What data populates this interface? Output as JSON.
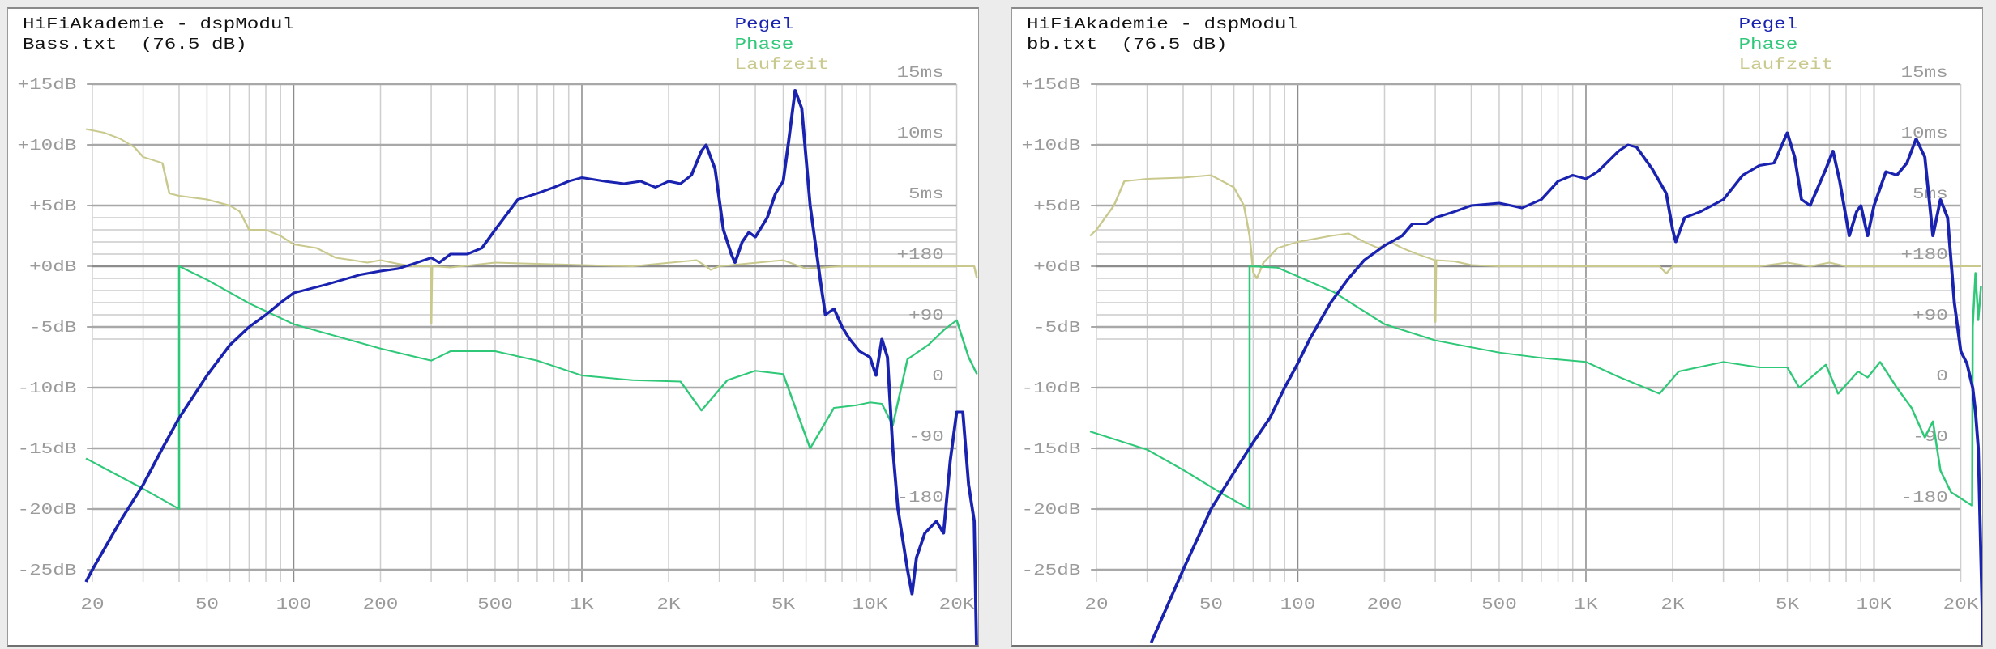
{
  "colors": {
    "pegel": "#1a22b0",
    "phase": "#2fc878",
    "laufzeit": "#c9c98e",
    "grid_major": "#a8a8a8",
    "grid_minor": "#d8d8d8",
    "axis_text": "#9a9a9a"
  },
  "chart_data": [
    {
      "type": "line",
      "title": "HiFiAkademie - dspModul",
      "subtitle": "Bass.txt  (76.5 dB)",
      "legend": [
        "Pegel",
        "Phase",
        "Laufzeit"
      ],
      "legend_placement": "top-right",
      "x_scale": "log",
      "xlim": [
        19,
        24000
      ],
      "ylim_db": [
        -26,
        15
      ],
      "grid": true,
      "x_ticks": [
        20,
        50,
        100,
        200,
        500,
        1000,
        2000,
        5000,
        10000,
        20000
      ],
      "x_tick_labels": [
        "20",
        "50",
        "100",
        "200",
        "500",
        "1K",
        "2K",
        "5K",
        "10K",
        "20K"
      ],
      "y_ticks": [
        15,
        10,
        5,
        0,
        -5,
        -10,
        -15,
        -20,
        -25
      ],
      "y_tick_labels": [
        "+15dB",
        "+10dB",
        "+5dB",
        "+0dB",
        "-5dB",
        "-10dB",
        "-15dB",
        "-20dB",
        "-25dB"
      ],
      "laufzeit_ticks": [
        15,
        10,
        5
      ],
      "laufzeit_tick_labels": [
        "15ms",
        "10ms",
        "5ms"
      ],
      "phase_ticks": [
        180,
        90,
        0,
        -90,
        -180
      ],
      "phase_tick_labels": [
        "+180",
        "+90",
        "0",
        "-90",
        "-180"
      ],
      "series": [
        {
          "name": "Pegel",
          "unit": "dB",
          "x": [
            19,
            20,
            25,
            30,
            35,
            40,
            50,
            60,
            70,
            80,
            90,
            100,
            130,
            170,
            200,
            230,
            260,
            300,
            320,
            350,
            400,
            450,
            500,
            600,
            700,
            800,
            900,
            1000,
            1200,
            1400,
            1600,
            1800,
            2000,
            2200,
            2400,
            2600,
            2700,
            2900,
            3100,
            3300,
            3400,
            3600,
            3800,
            4000,
            4400,
            4700,
            5000,
            5200,
            5500,
            5800,
            6200,
            6800,
            7000,
            7500,
            8000,
            8500,
            9200,
            10000,
            10500,
            11000,
            11500,
            12000,
            12500,
            13500,
            14000,
            14500,
            15500,
            17000,
            18000,
            19000,
            20000,
            21000,
            22000,
            23000,
            23500
          ],
          "y": [
            -26,
            -25,
            -21,
            -18,
            -15,
            -12.5,
            -9,
            -6.5,
            -5,
            -4,
            -3,
            -2.2,
            -1.5,
            -0.7,
            -0.4,
            -0.2,
            0.2,
            0.7,
            0.3,
            1,
            1,
            1.5,
            3,
            5.5,
            6,
            6.5,
            7,
            7.3,
            7,
            6.8,
            7,
            6.5,
            7,
            6.8,
            7.5,
            9.5,
            10,
            8,
            3,
            1,
            0.3,
            2,
            2.8,
            2.4,
            4,
            6,
            7,
            10,
            14.5,
            13,
            5,
            -2,
            -4,
            -3.5,
            -5,
            -6,
            -7,
            -7.5,
            -9,
            -6,
            -7.5,
            -15,
            -20,
            -25,
            -27,
            -24,
            -22,
            -21,
            -22,
            -16,
            -12,
            -12,
            -18,
            -21,
            -33
          ]
        },
        {
          "name": "Phase",
          "unit": "deg",
          "x": [
            19,
            20,
            30,
            40,
            40.01,
            50,
            70,
            100,
            200,
            300,
            350,
            500,
            700,
            1000,
            1500,
            2200,
            2600,
            3200,
            4000,
            5000,
            6200,
            7500,
            9000,
            10000,
            11000,
            12000,
            13500,
            16000,
            18000,
            20000,
            22000,
            23500
          ],
          "y": [
            -105,
            -110,
            -150,
            -180,
            180,
            160,
            125,
            94,
            58,
            40,
            54,
            54,
            40,
            18,
            11,
            9,
            -34,
            11,
            25,
            20,
            -90,
            -30,
            -26,
            -22,
            -24,
            -56,
            42,
            64,
            85,
            100,
            45,
            20
          ]
        },
        {
          "name": "Laufzeit",
          "unit": "ms",
          "x": [
            19,
            22,
            25,
            28,
            30,
            35,
            37,
            40,
            50,
            60,
            65,
            70,
            80,
            90,
            100,
            120,
            140,
            160,
            180,
            200,
            230,
            260,
            299,
            300,
            302,
            350,
            500,
            700,
            1000,
            1500,
            2500,
            2700,
            2800,
            3000,
            5000,
            6000,
            8000,
            12000,
            23000,
            23500
          ],
          "y": [
            11.3,
            11,
            10.5,
            9.8,
            9,
            8.5,
            6,
            5.8,
            5.5,
            5,
            4.5,
            3,
            3,
            2.5,
            1.8,
            1.5,
            0.7,
            0.5,
            0.3,
            0.5,
            0.2,
            0,
            0,
            -4.7,
            0,
            -0.1,
            0.3,
            0.2,
            0.1,
            0,
            0.5,
            0,
            -0.3,
            0,
            0.5,
            -0.2,
            0,
            0,
            0,
            -1
          ]
        }
      ]
    },
    {
      "type": "line",
      "title": "HiFiAkademie - dspModul",
      "subtitle": "bb.txt  (76.5 dB)",
      "legend": [
        "Pegel",
        "Phase",
        "Laufzeit"
      ],
      "legend_placement": "top-right",
      "x_scale": "log",
      "xlim": [
        19,
        24000
      ],
      "ylim_db": [
        -26,
        15
      ],
      "grid": true,
      "x_ticks": [
        20,
        50,
        100,
        200,
        500,
        1000,
        2000,
        5000,
        10000,
        20000
      ],
      "x_tick_labels": [
        "20",
        "50",
        "100",
        "200",
        "500",
        "1K",
        "2K",
        "5K",
        "10K",
        "20K"
      ],
      "y_ticks": [
        15,
        10,
        5,
        0,
        -5,
        -10,
        -15,
        -20,
        -25
      ],
      "y_tick_labels": [
        "+15dB",
        "+10dB",
        "+5dB",
        "+0dB",
        "-5dB",
        "-10dB",
        "-15dB",
        "-20dB",
        "-25dB"
      ],
      "laufzeit_ticks": [
        15,
        10,
        5
      ],
      "laufzeit_tick_labels": [
        "15ms",
        "10ms",
        "5ms"
      ],
      "phase_ticks": [
        180,
        90,
        0,
        -90,
        -180
      ],
      "phase_tick_labels": [
        "+180",
        "+90",
        "0",
        "-90",
        "-180"
      ],
      "series": [
        {
          "name": "Pegel",
          "unit": "dB",
          "x": [
            31,
            40,
            50,
            60,
            70,
            80,
            90,
            100,
            110,
            130,
            150,
            170,
            200,
            230,
            250,
            280,
            300,
            350,
            400,
            500,
            550,
            600,
            700,
            800,
            900,
            1000,
            1100,
            1300,
            1400,
            1500,
            1700,
            1900,
            2000,
            2050,
            2200,
            2500,
            3000,
            3500,
            4000,
            4500,
            5000,
            5300,
            5600,
            6000,
            6800,
            7200,
            7600,
            8200,
            8700,
            9000,
            9500,
            10000,
            11000,
            12000,
            13000,
            14000,
            15000,
            16000,
            17000,
            18000,
            19000,
            20000,
            21000,
            22000,
            22500,
            23000,
            24000
          ],
          "y": [
            -31,
            -25,
            -20,
            -17,
            -14.5,
            -12.5,
            -10,
            -8,
            -6,
            -3,
            -1,
            0.5,
            1.7,
            2.5,
            3.5,
            3.5,
            4,
            4.5,
            5,
            5.2,
            5,
            4.8,
            5.5,
            7,
            7.5,
            7.2,
            7.8,
            9.5,
            10,
            9.8,
            8,
            6,
            3,
            2,
            4,
            4.5,
            5.5,
            7.5,
            8.3,
            8.5,
            11,
            9,
            5.5,
            5,
            8,
            9.5,
            7,
            2.5,
            4.5,
            5,
            2.5,
            5,
            7.8,
            7.5,
            8.5,
            10.5,
            9,
            2.5,
            5.5,
            4,
            -3,
            -7,
            -8,
            -10,
            -12,
            -15,
            -33
          ]
        },
        {
          "name": "Phase",
          "unit": "deg",
          "x": [
            19,
            20,
            30,
            40,
            55,
            68,
            68.01,
            85,
            100,
            133,
            200,
            300,
            500,
            700,
            1000,
            1300,
            1800,
            2100,
            3000,
            4000,
            5000,
            5500,
            6800,
            7500,
            8800,
            9500,
            10500,
            12000,
            13500,
            15000,
            16000,
            17000,
            18500,
            21900,
            22000,
            22500,
            23000,
            23500
          ],
          "y": [
            -65,
            -68,
            -92,
            -122,
            -158,
            -180,
            180,
            178,
            165,
            142,
            94,
            70,
            52,
            44,
            38,
            16,
            -9,
            24,
            38,
            30,
            30,
            0,
            34,
            -9,
            24,
            15,
            38,
            0,
            -30,
            -74,
            -50,
            -123,
            -155,
            -175,
            90,
            170,
            100,
            150
          ]
        },
        {
          "name": "Laufzeit",
          "unit": "ms",
          "x": [
            19,
            20,
            23,
            25,
            30,
            40,
            50,
            60,
            65,
            68,
            70,
            72,
            76,
            85,
            100,
            130,
            150,
            170,
            190,
            210,
            230,
            260,
            299,
            300,
            302,
            350,
            400,
            500,
            1800,
            1900,
            2000,
            4000,
            5000,
            6000,
            7000,
            8000,
            23500
          ],
          "y": [
            2.5,
            3,
            5,
            7,
            7.2,
            7.3,
            7.5,
            6.5,
            5,
            2.5,
            -0.5,
            -1,
            0.3,
            1.5,
            2,
            2.5,
            2.7,
            2,
            1.5,
            2,
            1.5,
            1,
            0.5,
            -4.6,
            0.5,
            0.4,
            0.1,
            0,
            0,
            -0.6,
            0,
            0,
            0.3,
            0,
            0.3,
            0,
            0
          ]
        }
      ]
    }
  ]
}
